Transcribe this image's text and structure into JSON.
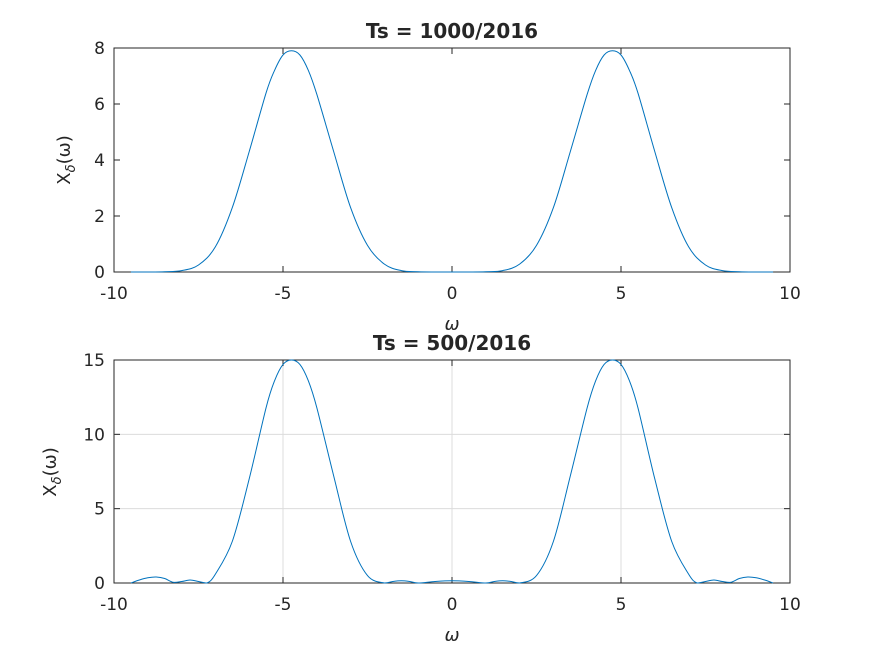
{
  "chart_data": [
    {
      "type": "line",
      "title": "Ts = 1000/2016",
      "xlabel": "ω",
      "ylabel": {
        "base": "X",
        "subscript": "δ",
        "arg": "(ω)"
      },
      "xlim": [
        -10,
        10
      ],
      "ylim": [
        0,
        8
      ],
      "xticks": [
        -10,
        -5,
        0,
        5,
        10
      ],
      "yticks": [
        0,
        2,
        4,
        6,
        8
      ],
      "xtick_labels": [
        "-10",
        "-5",
        "0",
        "5",
        "10"
      ],
      "ytick_labels": [
        "0",
        "2",
        "4",
        "6",
        "8"
      ],
      "grid": false,
      "line_color": "#0072bd",
      "series": [
        {
          "x": [
            -9.5,
            -9,
            -8.5,
            -8,
            -7.5,
            -7,
            -6.5,
            -6,
            -5.5,
            -5.25,
            -5,
            -4.75,
            -4.5,
            -4.25,
            -4,
            -3.5,
            -3,
            -2.5,
            -2,
            -1.5,
            -1,
            0,
            1,
            1.5,
            2,
            2.5,
            3,
            3.5,
            4,
            4.25,
            4.5,
            4.75,
            5,
            5.25,
            5.5,
            6,
            6.5,
            7,
            7.5,
            8,
            8.5,
            9,
            9.5
          ],
          "y": [
            0,
            0,
            0.01,
            0.05,
            0.25,
            0.9,
            2.3,
            4.3,
            6.4,
            7.2,
            7.75,
            7.9,
            7.75,
            7.2,
            6.35,
            4.3,
            2.3,
            0.95,
            0.28,
            0.05,
            0.01,
            0,
            0.01,
            0.05,
            0.28,
            0.95,
            2.3,
            4.3,
            6.35,
            7.2,
            7.75,
            7.9,
            7.75,
            7.2,
            6.4,
            4.3,
            2.3,
            0.9,
            0.25,
            0.05,
            0.01,
            0,
            0
          ]
        }
      ]
    },
    {
      "type": "line",
      "title": "Ts = 500/2016",
      "xlabel": "ω",
      "ylabel": {
        "base": "X",
        "subscript": "δ",
        "arg": "(ω)"
      },
      "xlim": [
        -10,
        10
      ],
      "ylim": [
        0,
        15
      ],
      "xticks": [
        -10,
        -5,
        0,
        5,
        10
      ],
      "yticks": [
        0,
        5,
        10,
        15
      ],
      "xtick_labels": [
        "-10",
        "-5",
        "0",
        "5",
        "10"
      ],
      "ytick_labels": [
        "0",
        "5",
        "10",
        "15"
      ],
      "grid": true,
      "line_color": "#0072bd",
      "series": [
        {
          "x": [
            -9.5,
            -9.25,
            -9,
            -8.75,
            -8.5,
            -8.25,
            -8,
            -7.75,
            -7.5,
            -7.25,
            -7,
            -6.5,
            -6,
            -5.5,
            -5.25,
            -5,
            -4.75,
            -4.5,
            -4.25,
            -4,
            -3.5,
            -3,
            -2.5,
            -2,
            -1.75,
            -1.5,
            -1.25,
            -1,
            -0.5,
            0,
            0.5,
            1,
            1.25,
            1.5,
            1.75,
            2,
            2.5,
            3,
            3.5,
            4,
            4.25,
            4.5,
            4.75,
            5,
            5.25,
            5.5,
            6,
            6.5,
            7,
            7.25,
            7.5,
            7.75,
            8,
            8.25,
            8.5,
            8.75,
            9,
            9.25,
            9.5
          ],
          "y": [
            0,
            0.2,
            0.35,
            0.4,
            0.3,
            0.05,
            0.1,
            0.2,
            0.1,
            0,
            0.6,
            2.8,
            7,
            11.8,
            13.6,
            14.7,
            15,
            14.7,
            13.6,
            11.8,
            7.2,
            2.8,
            0.5,
            0,
            0.1,
            0.15,
            0.1,
            0,
            0.1,
            0.15,
            0.1,
            0,
            0.1,
            0.15,
            0.1,
            0,
            0.5,
            2.8,
            7.2,
            11.8,
            13.6,
            14.7,
            15,
            14.7,
            13.6,
            11.8,
            7,
            2.8,
            0.6,
            0,
            0.1,
            0.2,
            0.1,
            0.05,
            0.3,
            0.4,
            0.35,
            0.2,
            0
          ]
        }
      ]
    }
  ]
}
